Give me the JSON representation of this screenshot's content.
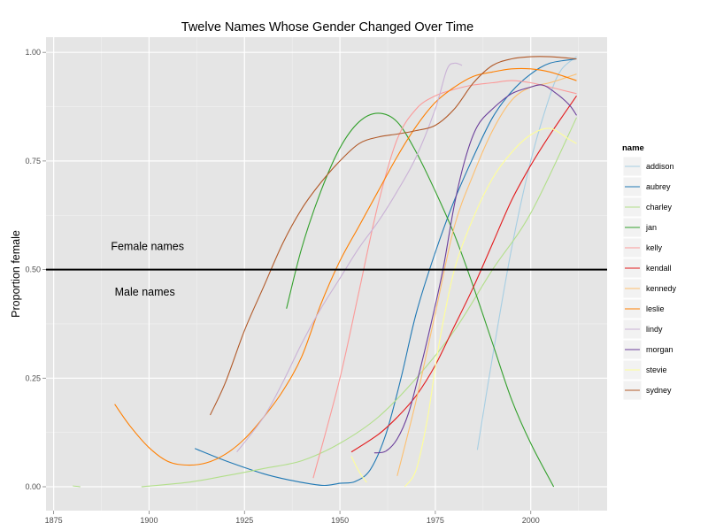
{
  "chart_data": {
    "type": "line",
    "title": "Twelve Names Whose Gender Changed Over Time",
    "xlabel": "",
    "ylabel": "Proportion female",
    "xlim": [
      1873,
      2020
    ],
    "ylim": [
      -0.055,
      1.035
    ],
    "x_ticks": [
      1875,
      1900,
      1925,
      1950,
      1975,
      2000
    ],
    "y_ticks": [
      0.0,
      0.25,
      0.5,
      0.75,
      1.0
    ],
    "y_tick_labels": [
      "0.00",
      "0.25",
      "0.50",
      "0.75",
      "1.00"
    ],
    "grid": true,
    "legend_title": "name",
    "legend_position": "right",
    "reference_line": {
      "y": 0.5,
      "color": "#000000"
    },
    "annotations": [
      {
        "text": "Female names",
        "x": 1890,
        "y": 0.545
      },
      {
        "text": "Male names",
        "x": 1891,
        "y": 0.44
      }
    ],
    "series": [
      {
        "name": "addison",
        "color": "#a6cee3",
        "points": [
          [
            1986,
            0.085
          ],
          [
            1990,
            0.3
          ],
          [
            1995,
            0.55
          ],
          [
            2000,
            0.75
          ],
          [
            2005,
            0.9
          ],
          [
            2008,
            0.96
          ],
          [
            2012,
            0.99
          ]
        ]
      },
      {
        "name": "aubrey",
        "color": "#1f78b4",
        "points": [
          [
            1912,
            0.088
          ],
          [
            1920,
            0.06
          ],
          [
            1930,
            0.03
          ],
          [
            1937,
            0.015
          ],
          [
            1942,
            0.007
          ],
          [
            1946,
            0.003
          ],
          [
            1950,
            0.008
          ],
          [
            1954,
            0.012
          ],
          [
            1958,
            0.04
          ],
          [
            1962,
            0.12
          ],
          [
            1966,
            0.25
          ],
          [
            1970,
            0.4
          ],
          [
            1975,
            0.54
          ],
          [
            1980,
            0.66
          ],
          [
            1985,
            0.76
          ],
          [
            1990,
            0.85
          ],
          [
            1995,
            0.91
          ],
          [
            2000,
            0.95
          ],
          [
            2005,
            0.975
          ],
          [
            2012,
            0.985
          ]
        ]
      },
      {
        "name": "charley",
        "color": "#b2df8a",
        "points": [
          [
            1880,
            0.002
          ],
          [
            1882,
            0.0
          ]
        ],
        "segments": [
          [
            [
              1880,
              0.002
            ],
            [
              1882,
              0.0
            ]
          ],
          [
            [
              1898,
              0.0
            ],
            [
              1910,
              0.01
            ],
            [
              1920,
              0.025
            ],
            [
              1930,
              0.042
            ],
            [
              1940,
              0.06
            ],
            [
              1950,
              0.1
            ],
            [
              1960,
              0.16
            ],
            [
              1970,
              0.25
            ],
            [
              1980,
              0.36
            ],
            [
              1990,
              0.5
            ],
            [
              2000,
              0.63
            ],
            [
              2012,
              0.85
            ]
          ]
        ]
      },
      {
        "name": "jan",
        "color": "#33a02c",
        "points": [
          [
            1936,
            0.41
          ],
          [
            1940,
            0.55
          ],
          [
            1945,
            0.68
          ],
          [
            1950,
            0.78
          ],
          [
            1955,
            0.84
          ],
          [
            1960,
            0.86
          ],
          [
            1965,
            0.84
          ],
          [
            1970,
            0.77
          ],
          [
            1975,
            0.68
          ],
          [
            1980,
            0.58
          ],
          [
            1985,
            0.46
          ],
          [
            1990,
            0.33
          ],
          [
            1995,
            0.2
          ],
          [
            2000,
            0.1
          ],
          [
            2006,
            0.0
          ]
        ]
      },
      {
        "name": "kelly",
        "color": "#fb9a99",
        "points": [
          [
            1943,
            0.02
          ],
          [
            1950,
            0.25
          ],
          [
            1955,
            0.45
          ],
          [
            1960,
            0.65
          ],
          [
            1965,
            0.8
          ],
          [
            1970,
            0.87
          ],
          [
            1975,
            0.9
          ],
          [
            1980,
            0.915
          ],
          [
            1985,
            0.925
          ],
          [
            1990,
            0.93
          ],
          [
            1995,
            0.935
          ],
          [
            2000,
            0.93
          ],
          [
            2005,
            0.92
          ],
          [
            2012,
            0.905
          ]
        ]
      },
      {
        "name": "kendall",
        "color": "#e31a1c",
        "points": [
          [
            1953,
            0.08
          ],
          [
            1960,
            0.12
          ],
          [
            1965,
            0.16
          ],
          [
            1970,
            0.21
          ],
          [
            1975,
            0.28
          ],
          [
            1980,
            0.37
          ],
          [
            1985,
            0.46
          ],
          [
            1990,
            0.56
          ],
          [
            1995,
            0.66
          ],
          [
            2000,
            0.74
          ],
          [
            2005,
            0.81
          ],
          [
            2012,
            0.9
          ]
        ]
      },
      {
        "name": "kennedy",
        "color": "#fdbf6f",
        "points": [
          [
            1965,
            0.025
          ],
          [
            1970,
            0.2
          ],
          [
            1975,
            0.4
          ],
          [
            1980,
            0.6
          ],
          [
            1985,
            0.72
          ],
          [
            1990,
            0.82
          ],
          [
            1995,
            0.89
          ],
          [
            2000,
            0.92
          ],
          [
            2005,
            0.93
          ],
          [
            2012,
            0.95
          ]
        ]
      },
      {
        "name": "leslie",
        "color": "#ff7f00",
        "points": [
          [
            1891,
            0.19
          ],
          [
            1895,
            0.14
          ],
          [
            1900,
            0.09
          ],
          [
            1905,
            0.058
          ],
          [
            1910,
            0.05
          ],
          [
            1915,
            0.055
          ],
          [
            1920,
            0.075
          ],
          [
            1925,
            0.11
          ],
          [
            1930,
            0.16
          ],
          [
            1935,
            0.22
          ],
          [
            1940,
            0.3
          ],
          [
            1945,
            0.42
          ],
          [
            1950,
            0.52
          ],
          [
            1955,
            0.6
          ],
          [
            1960,
            0.68
          ],
          [
            1965,
            0.76
          ],
          [
            1970,
            0.83
          ],
          [
            1975,
            0.885
          ],
          [
            1980,
            0.92
          ],
          [
            1985,
            0.945
          ],
          [
            1990,
            0.955
          ],
          [
            1995,
            0.962
          ],
          [
            2000,
            0.962
          ],
          [
            2005,
            0.955
          ],
          [
            2012,
            0.935
          ]
        ]
      },
      {
        "name": "lindy",
        "color": "#cab2d6",
        "points": [
          [
            1923,
            0.08
          ],
          [
            1930,
            0.16
          ],
          [
            1935,
            0.24
          ],
          [
            1940,
            0.33
          ],
          [
            1945,
            0.41
          ],
          [
            1950,
            0.48
          ],
          [
            1955,
            0.55
          ],
          [
            1960,
            0.61
          ],
          [
            1965,
            0.68
          ],
          [
            1970,
            0.76
          ],
          [
            1975,
            0.87
          ],
          [
            1978,
            0.96
          ],
          [
            1980,
            0.975
          ],
          [
            1982,
            0.97
          ]
        ]
      },
      {
        "name": "morgan",
        "color": "#6a3d9a",
        "points": [
          [
            1959,
            0.078
          ],
          [
            1962,
            0.082
          ],
          [
            1965,
            0.11
          ],
          [
            1968,
            0.17
          ],
          [
            1971,
            0.27
          ],
          [
            1974,
            0.38
          ],
          [
            1977,
            0.5
          ],
          [
            1980,
            0.65
          ],
          [
            1983,
            0.76
          ],
          [
            1986,
            0.83
          ],
          [
            1990,
            0.87
          ],
          [
            1995,
            0.905
          ],
          [
            2000,
            0.92
          ],
          [
            2003,
            0.925
          ],
          [
            2006,
            0.91
          ],
          [
            2010,
            0.88
          ],
          [
            2012,
            0.855
          ]
        ]
      },
      {
        "name": "stevie",
        "color": "#ffff99",
        "points": [
          [
            1953,
            0.07
          ],
          [
            1955,
            0.035
          ],
          [
            1957,
            0.01
          ]
        ],
        "segments": [
          [
            [
              1953,
              0.07
            ],
            [
              1955,
              0.035
            ],
            [
              1957,
              0.01
            ]
          ],
          [
            [
              1967,
              0.0
            ],
            [
              1970,
              0.04
            ],
            [
              1973,
              0.16
            ],
            [
              1976,
              0.33
            ],
            [
              1980,
              0.5
            ],
            [
              1985,
              0.62
            ],
            [
              1990,
              0.71
            ],
            [
              1995,
              0.77
            ],
            [
              2000,
              0.81
            ],
            [
              2005,
              0.825
            ],
            [
              2010,
              0.8
            ],
            [
              2012,
              0.79
            ]
          ]
        ]
      },
      {
        "name": "sydney",
        "color": "#b15928",
        "points": [
          [
            1916,
            0.165
          ],
          [
            1920,
            0.24
          ],
          [
            1925,
            0.36
          ],
          [
            1930,
            0.46
          ],
          [
            1935,
            0.56
          ],
          [
            1940,
            0.64
          ],
          [
            1945,
            0.7
          ],
          [
            1950,
            0.75
          ],
          [
            1955,
            0.79
          ],
          [
            1960,
            0.805
          ],
          [
            1965,
            0.812
          ],
          [
            1970,
            0.82
          ],
          [
            1975,
            0.832
          ],
          [
            1980,
            0.87
          ],
          [
            1985,
            0.93
          ],
          [
            1990,
            0.97
          ],
          [
            1995,
            0.985
          ],
          [
            2000,
            0.99
          ],
          [
            2005,
            0.99
          ],
          [
            2012,
            0.985
          ]
        ]
      }
    ]
  }
}
